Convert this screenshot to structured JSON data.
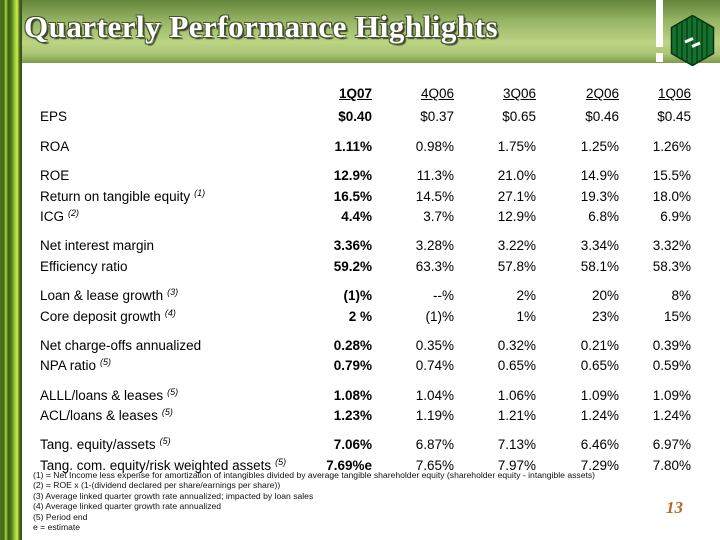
{
  "slide": {
    "title": "Quarterly Performance Highlights",
    "page_number": "13"
  },
  "logo": {
    "icon": "hexagon-h-logo",
    "color": "#15722e"
  },
  "colors": {
    "header_gradient_top": "#63853a",
    "header_gradient_light": "#bcd483",
    "header_gradient_bottom": "#7d9c4a",
    "sidebar_bright": "#cdef48",
    "sidebar_dark": "#2f4f17",
    "logo_green": "#15722e",
    "page_number": "#b4691e",
    "title_text": "#ffffff",
    "body_text": "#000000"
  },
  "table": {
    "columns": [
      "1Q07",
      "4Q06",
      "3Q06",
      "2Q06",
      "1Q06"
    ],
    "groups": [
      {
        "rows": [
          {
            "label": "EPS",
            "sup": "",
            "values": [
              "$0.40",
              "$0.37",
              "$0.65",
              "$0.46",
              "$0.45"
            ]
          }
        ]
      },
      {
        "rows": [
          {
            "label": "ROA",
            "sup": "",
            "values": [
              "1.11%",
              "0.98%",
              "1.75%",
              "1.25%",
              "1.26%"
            ]
          }
        ]
      },
      {
        "rows": [
          {
            "label": "ROE",
            "sup": "",
            "values": [
              "12.9%",
              "11.3%",
              "21.0%",
              "14.9%",
              "15.5%"
            ]
          },
          {
            "label": "Return on tangible equity",
            "sup": "(1)",
            "values": [
              "16.5%",
              "14.5%",
              "27.1%",
              "19.3%",
              "18.0%"
            ]
          },
          {
            "label": "ICG",
            "sup": "(2)",
            "values": [
              "4.4%",
              "3.7%",
              "12.9%",
              "6.8%",
              "6.9%"
            ]
          }
        ]
      },
      {
        "rows": [
          {
            "label": "Net interest margin",
            "sup": "",
            "values": [
              "3.36%",
              "3.28%",
              "3.22%",
              "3.34%",
              "3.32%"
            ]
          },
          {
            "label": "Efficiency ratio",
            "sup": "",
            "values": [
              "59.2%",
              "63.3%",
              "57.8%",
              "58.1%",
              "58.3%"
            ]
          }
        ]
      },
      {
        "rows": [
          {
            "label": "Loan & lease growth",
            "sup": "(3)",
            "values": [
              "(1)%",
              "--%",
              "2%",
              "20%",
              "8%"
            ]
          },
          {
            "label": "Core deposit growth",
            "sup": "(4)",
            "values": [
              "2 %",
              "(1)%",
              "1%",
              "23%",
              "15%"
            ]
          }
        ]
      },
      {
        "rows": [
          {
            "label": "Net charge-offs annualized",
            "sup": "",
            "values": [
              "0.28%",
              "0.35%",
              "0.32%",
              "0.21%",
              "0.39%"
            ]
          },
          {
            "label": "NPA ratio",
            "sup": "(5)",
            "values": [
              "0.79%",
              "0.74%",
              "0.65%",
              "0.65%",
              "0.59%"
            ]
          }
        ]
      },
      {
        "rows": [
          {
            "label": "ALLL/loans & leases",
            "sup": "(5)",
            "values": [
              "1.08%",
              "1.04%",
              "1.06%",
              "1.09%",
              "1.09%"
            ]
          },
          {
            "label": "ACL/loans & leases",
            "sup": "(5)",
            "values": [
              "1.23%",
              "1.19%",
              "1.21%",
              "1.24%",
              "1.24%"
            ]
          }
        ]
      },
      {
        "rows": [
          {
            "label": "Tang. equity/assets",
            "sup": "(5)",
            "values": [
              "7.06%",
              "6.87%",
              "7.13%",
              "6.46%",
              "6.97%"
            ]
          },
          {
            "label": "Tang. com. equity/risk weighted assets",
            "sup": "(5)",
            "values": [
              "7.69%e",
              "7.65%",
              "7.97%",
              "7.29%",
              "7.80%"
            ]
          }
        ]
      }
    ]
  },
  "footnotes": [
    "(1) = Net Income less expense for amortization of intangibles divided by average tangible shareholder equity (shareholder equity - intangible assets)",
    "(2) = ROE x (1-(dividend declared per share/earnings per share))",
    "(3) Average linked quarter growth rate annualized; impacted by loan sales",
    "(4) Average linked quarter growth rate annualized",
    "(5) Period end",
    " e = estimate"
  ]
}
